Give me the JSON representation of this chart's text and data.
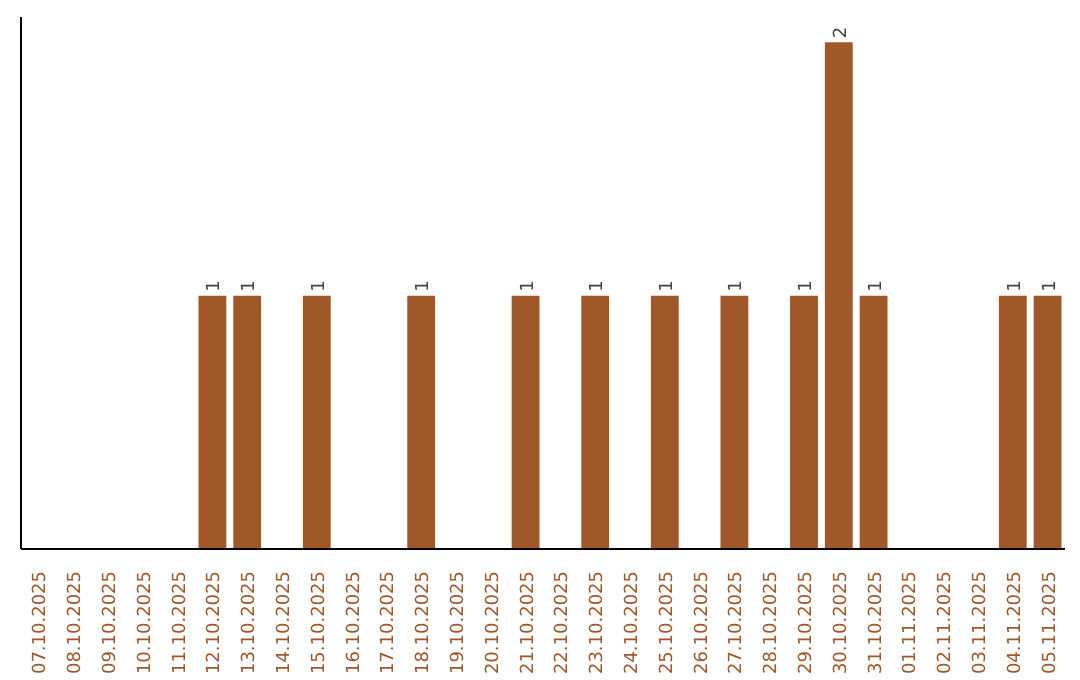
{
  "chart_data": {
    "type": "bar",
    "categories": [
      "07.10.2025",
      "08.10.2025",
      "09.10.2025",
      "10.10.2025",
      "11.10.2025",
      "12.10.2025",
      "13.10.2025",
      "14.10.2025",
      "15.10.2025",
      "16.10.2025",
      "17.10.2025",
      "18.10.2025",
      "19.10.2025",
      "20.10.2025",
      "21.10.2025",
      "22.10.2025",
      "23.10.2025",
      "24.10.2025",
      "25.10.2025",
      "26.10.2025",
      "27.10.2025",
      "28.10.2025",
      "29.10.2025",
      "30.10.2025",
      "31.10.2025",
      "01.11.2025",
      "02.11.2025",
      "03.11.2025",
      "04.11.2025",
      "05.11.2025"
    ],
    "values": [
      0,
      0,
      0,
      0,
      0,
      1,
      1,
      0,
      1,
      0,
      0,
      1,
      0,
      0,
      1,
      0,
      1,
      0,
      1,
      0,
      1,
      0,
      1,
      2,
      1,
      0,
      0,
      0,
      1,
      1
    ],
    "value_labels": [
      null,
      null,
      null,
      null,
      null,
      "1",
      "1",
      null,
      "1",
      null,
      null,
      "1",
      null,
      null,
      "1",
      null,
      "1",
      null,
      "1",
      null,
      "1",
      null,
      "1",
      "2",
      "1",
      null,
      null,
      null,
      "1",
      "1"
    ],
    "color": "#a0572a",
    "grid": false,
    "tick_labels": "x"
  }
}
